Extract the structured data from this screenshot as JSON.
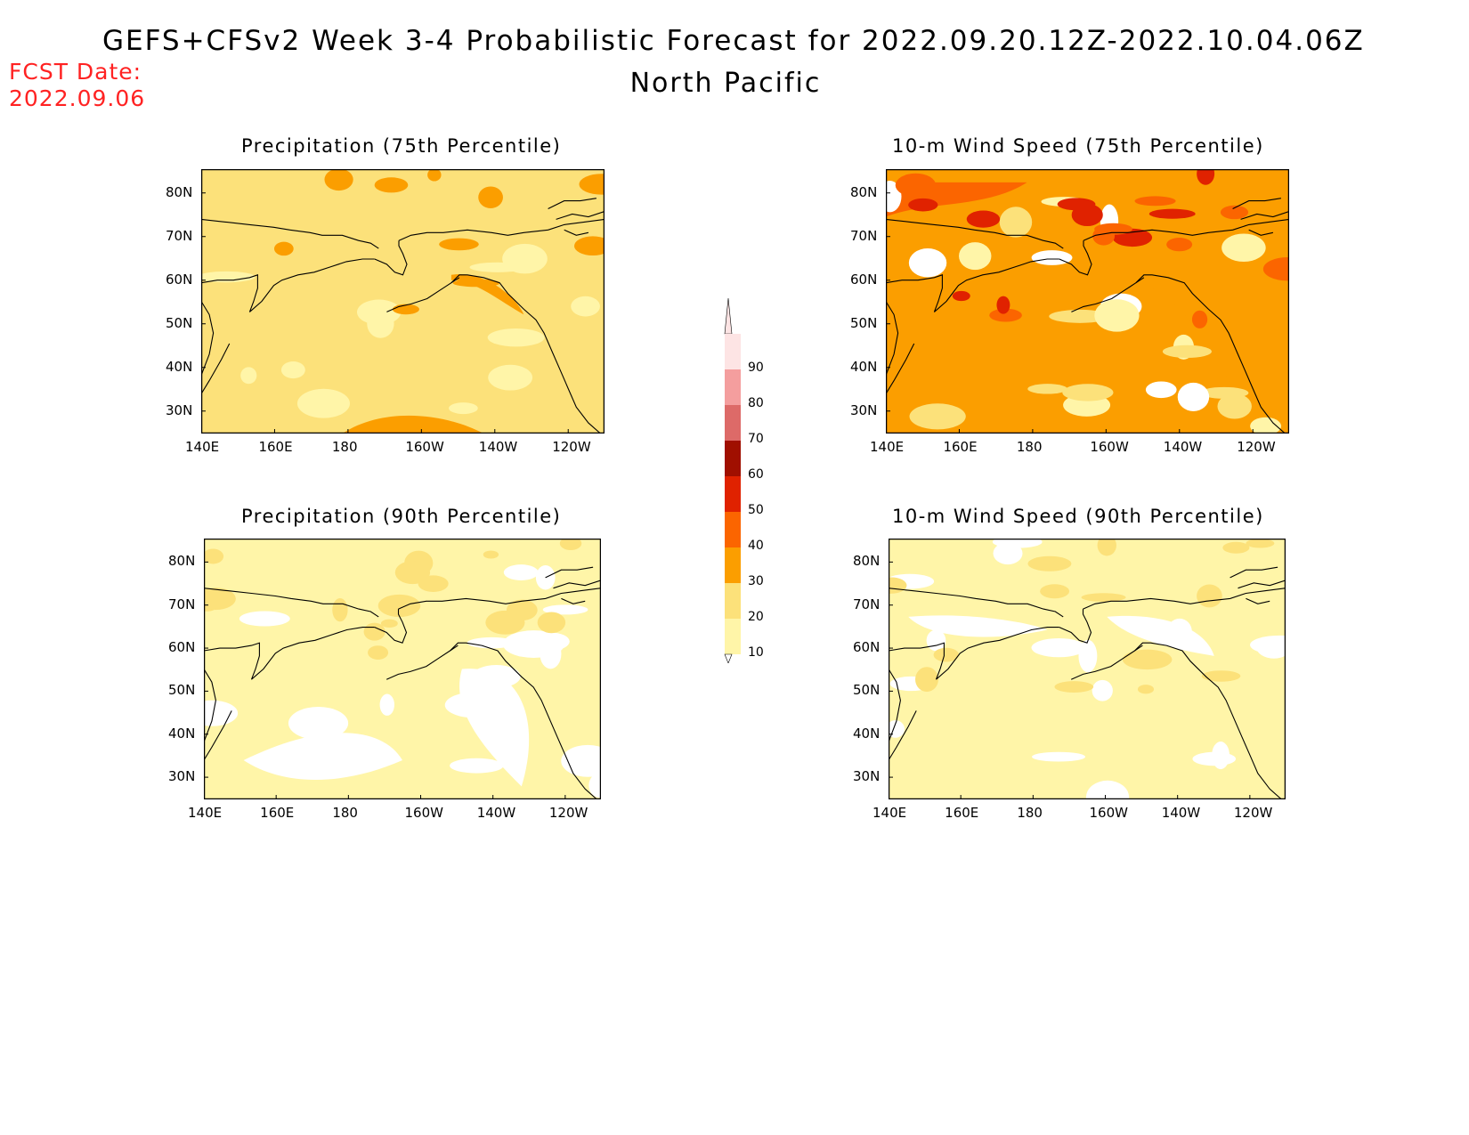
{
  "header": {
    "title": "GEFS+CFSv2 Week 3-4 Probabilistic Forecast for 2022.09.20.12Z-2022.10.04.06Z",
    "subtitle": "North Pacific",
    "fcst_label": "FCST Date:",
    "fcst_date": "2022.09.06"
  },
  "colors": {
    "forecast_date": "#ff2222",
    "levels": [
      "#ffffff",
      "#fff5a8",
      "#fce17a",
      "#fb9e00",
      "#fb6500",
      "#e02200",
      "#a00f00",
      "#dd6a68",
      "#f49e9e",
      "#fde4e4"
    ]
  },
  "axes": {
    "lat_ticks": [
      "80N",
      "70N",
      "60N",
      "50N",
      "40N",
      "30N"
    ],
    "lon_ticks": [
      "140E",
      "160E",
      "180",
      "160W",
      "140W",
      "120W"
    ]
  },
  "colorbar": {
    "labels": [
      "10",
      "20",
      "30",
      "40",
      "50",
      "60",
      "70",
      "80",
      "90"
    ]
  },
  "panels": [
    {
      "title": "Precipitation (75th Percentile)",
      "base_level": 2
    },
    {
      "title": "10-m Wind Speed (75th Percentile)",
      "base_level": 3
    },
    {
      "title": "Precipitation (90th Percentile)",
      "base_level": 1
    },
    {
      "title": "10-m Wind Speed (90th Percentile)",
      "base_level": 1
    }
  ]
}
